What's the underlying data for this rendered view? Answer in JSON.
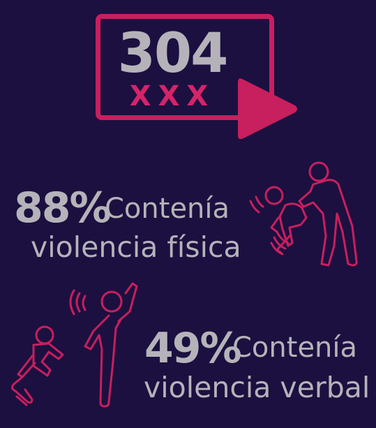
{
  "headline": {
    "number": "304",
    "marker": "XXX"
  },
  "stats": [
    {
      "percent": "88%",
      "label": "Contenía",
      "description": "violencia física",
      "icon": "physical-violence-icon"
    },
    {
      "percent": "49%",
      "label": "Contenía",
      "description": "violencia verbal",
      "icon": "verbal-violence-icon"
    }
  ],
  "colors": {
    "background": "#1c1040",
    "accent": "#c81f5e",
    "text": "#b5b3b9"
  }
}
